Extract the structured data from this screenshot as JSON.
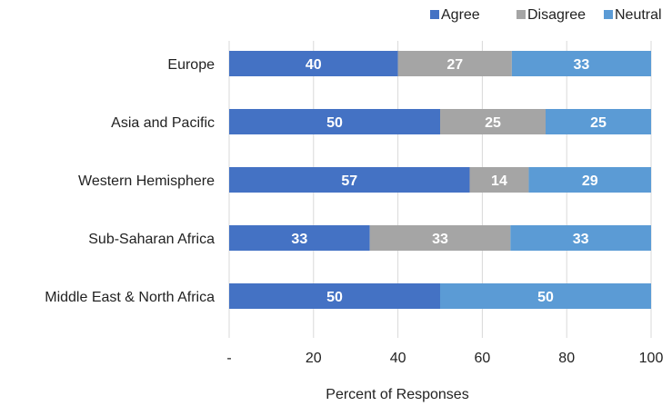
{
  "chart_data": {
    "type": "bar",
    "orientation": "horizontal",
    "stacked": true,
    "categories": [
      "Europe",
      "Asia and Pacific",
      "Western Hemisphere",
      "Sub-Saharan Africa",
      "Middle East & North Africa"
    ],
    "series": [
      {
        "name": "Agree",
        "color": "#4472c4",
        "values": [
          40,
          50,
          57,
          33,
          50
        ]
      },
      {
        "name": "Disagree",
        "color": "#a5a5a5",
        "values": [
          27,
          25,
          14,
          33,
          0
        ]
      },
      {
        "name": "Neutral",
        "color": "#5b9bd5",
        "values": [
          33,
          25,
          29,
          33,
          50
        ]
      }
    ],
    "xlabel": "Percent of Responses",
    "ylabel": "",
    "xlim": [
      0,
      100
    ],
    "xticks": [
      "-",
      "20",
      "40",
      "60",
      "80",
      "100"
    ],
    "legend_position": "top-right",
    "grid": true,
    "data_labels": true
  }
}
